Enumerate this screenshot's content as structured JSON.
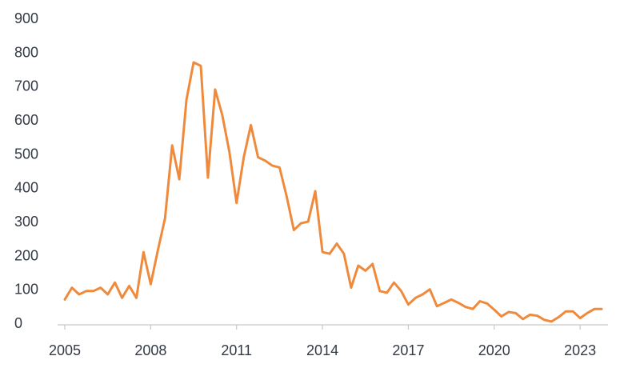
{
  "colors": {
    "line": "#ef8a3c",
    "text": "#333a45",
    "axis": "#c8c8c8"
  },
  "chart_data": {
    "type": "line",
    "title": "",
    "xlabel": "",
    "ylabel": "",
    "xlim": [
      2005,
      2023.75
    ],
    "ylim": [
      0,
      900
    ],
    "grid": false,
    "x_ticks": [
      2005,
      2008,
      2011,
      2014,
      2017,
      2020,
      2023
    ],
    "x_tick_labels": [
      "2005",
      "2008",
      "2011",
      "2014",
      "2017",
      "2020",
      "2023"
    ],
    "y_ticks": [
      0,
      100,
      200,
      300,
      400,
      500,
      600,
      700,
      800,
      900
    ],
    "y_tick_labels": [
      "0",
      "100",
      "200",
      "300",
      "400",
      "500",
      "600",
      "700",
      "800",
      "900"
    ],
    "series": [
      {
        "x": [
          2005.0,
          2005.25,
          2005.5,
          2005.75,
          2006.0,
          2006.25,
          2006.5,
          2006.75,
          2007.0,
          2007.25,
          2007.5,
          2007.75,
          2008.0,
          2008.25,
          2008.5,
          2008.75,
          2009.0,
          2009.25,
          2009.5,
          2009.75,
          2010.0,
          2010.25,
          2010.5,
          2010.75,
          2011.0,
          2011.25,
          2011.5,
          2011.75,
          2012.0,
          2012.25,
          2012.5,
          2012.75,
          2013.0,
          2013.25,
          2013.5,
          2013.75,
          2014.0,
          2014.25,
          2014.5,
          2014.75,
          2015.0,
          2015.25,
          2015.5,
          2015.75,
          2016.0,
          2016.25,
          2016.5,
          2016.75,
          2017.0,
          2017.25,
          2017.5,
          2017.75,
          2018.0,
          2018.25,
          2018.5,
          2018.75,
          2019.0,
          2019.25,
          2019.5,
          2019.75,
          2020.0,
          2020.25,
          2020.5,
          2020.75,
          2021.0,
          2021.25,
          2021.5,
          2021.75,
          2022.0,
          2022.25,
          2022.5,
          2022.75,
          2023.0,
          2023.25,
          2023.5,
          2023.75
        ],
        "values": [
          70,
          105,
          85,
          95,
          95,
          105,
          85,
          120,
          75,
          110,
          75,
          210,
          115,
          215,
          310,
          525,
          425,
          660,
          770,
          760,
          430,
          690,
          615,
          505,
          355,
          490,
          585,
          490,
          480,
          465,
          460,
          375,
          275,
          295,
          300,
          390,
          210,
          205,
          235,
          205,
          105,
          170,
          155,
          175,
          95,
          90,
          120,
          95,
          55,
          75,
          85,
          100,
          50,
          60,
          70,
          60,
          48,
          42,
          65,
          58,
          40,
          20,
          33,
          30,
          12,
          25,
          22,
          10,
          5,
          18,
          35,
          35,
          15,
          30,
          42,
          42
        ]
      }
    ]
  }
}
